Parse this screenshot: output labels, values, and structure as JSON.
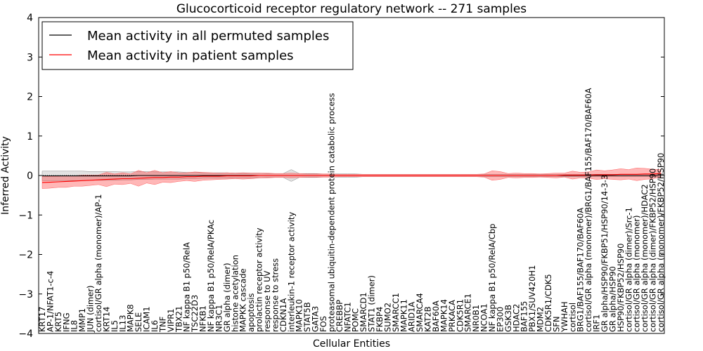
{
  "chart_data": {
    "type": "line",
    "title": "Glucocorticoid receptor regulatory network -- 271 samples",
    "xlabel": "Cellular Entities",
    "ylabel": "Inferred Activity",
    "ylim": [
      -4,
      4
    ],
    "yticks": [
      -4,
      -3,
      -2,
      -1,
      0,
      1,
      2,
      3,
      4
    ],
    "ytick_labels": [
      "−4",
      "−3",
      "−2",
      "−1",
      "0",
      "1",
      "2",
      "3",
      "4"
    ],
    "legend": {
      "position": "top-left",
      "entries": [
        {
          "label": "Mean activity in all permuted samples",
          "color": "#000000"
        },
        {
          "label": "Mean activity in patient samples",
          "color": "#ff0000"
        }
      ]
    },
    "categories": [
      "KRT17",
      "AP-1/NFAT1-c-4",
      "KRT5",
      "IFNG",
      "IL8",
      "MMP1",
      "JUN (dimer)",
      "cortisol/GR alpha (monomer)/AP-1",
      "KRT14",
      "IL5",
      "IL13",
      "MAPK8",
      "SELE",
      "ICAM1",
      "IL6",
      "TNF",
      "VIPR1",
      "TBX21",
      "NF kappa B1 p50/RelA",
      "TSC22D3",
      "NFKB1",
      "NF kappa B1 p50/RelA/PKAc",
      "NR3C1",
      "GR alpha (dimer)",
      "histone acetylation",
      "MAPKK cascade",
      "apoptosis",
      "prolactin receptor activity",
      "response to UV",
      "response to stress",
      "CDKN1A",
      "interleukin-1 receptor activity",
      "MAPK10",
      "STAT5B",
      "GATA3",
      "FOS",
      "proteasomal ubiquitin-dependent protein catabolic process",
      "CREBBP",
      "NFATC1",
      "POMC",
      "SMARCD1",
      "STAT1 (dimer)",
      "FKBP4",
      "SUMO2",
      "SMARCC1",
      "MAPK11",
      "ARID1A",
      "SMARCA4",
      "KAT2B",
      "BAF60A",
      "MAPK14",
      "PRKACA",
      "CDK5R1",
      "SMARCE1",
      "NR0B1",
      "NCOA1",
      "NF kappa B1 p50/RelA/Cbp",
      "EP300",
      "GSK3B",
      "HDAC2",
      "BAF155",
      "PBX1/SUV420H1",
      "MDM2",
      "CDK5R1/CDK5",
      "SFN",
      "YWHAH",
      "cortisol",
      "BRG1/BAF155/BAF170/BAF60A",
      "cortisol/GR alpha (monomer)/BRG1/BAF155/BAF170/BAF60A",
      "IRF1",
      "GR alpha/HSP90/FKBP51/HSP90/14-3-3",
      "GR alpha/HSP90",
      "HSP90/FKBP52/HSP90",
      "cortisol/GR alpha (dimer)/Src-1",
      "cortisol/GR alpha (monomer)",
      "cortisol/GR alpha (monomer)/HDAC2",
      "cortisol/GR alpha (dimer)/FKBP52/HSP90",
      "cortisol/GR alpha (monomer)/FKBP52/HSP90"
    ],
    "series": [
      {
        "name": "Mean activity in all permuted samples",
        "color": "#000000",
        "values": [
          -0.01,
          -0.01,
          -0.01,
          -0.01,
          -0.01,
          -0.01,
          -0.01,
          -0.01,
          -0.01,
          -0.01,
          -0.01,
          -0.01,
          0,
          0,
          0,
          0,
          0,
          0,
          0,
          0,
          0,
          0,
          0,
          0,
          0,
          0,
          0,
          0,
          0,
          0,
          0,
          0,
          0,
          0,
          0,
          0,
          0,
          0,
          0,
          0,
          0,
          0,
          0,
          0,
          0,
          0,
          0,
          0,
          0,
          0,
          0,
          0,
          0,
          0,
          0,
          0,
          0,
          0,
          0,
          0,
          0,
          0,
          0,
          0,
          0,
          0,
          0,
          0,
          0,
          0,
          0,
          0,
          0,
          0,
          0,
          0,
          0,
          0
        ],
        "band_half_width": [
          0.12,
          0.12,
          0.12,
          0.12,
          0.12,
          0.12,
          0.11,
          0.11,
          0.11,
          0.11,
          0.1,
          0.1,
          0.1,
          0.1,
          0.09,
          0.09,
          0.09,
          0.09,
          0.08,
          0.08,
          0.07,
          0.07,
          0.07,
          0.07,
          0.06,
          0.06,
          0.06,
          0.06,
          0.05,
          0.05,
          0.05,
          0.15,
          0.05,
          0.05,
          0.05,
          0.04,
          0.04,
          0.04,
          0.04,
          0.04,
          0.03,
          0.03,
          0.03,
          0.03,
          0.03,
          0.03,
          0.03,
          0.03,
          0.03,
          0.03,
          0.03,
          0.03,
          0.03,
          0.03,
          0.03,
          0.03,
          0.03,
          0.03,
          0.03,
          0.03,
          0.03,
          0.03,
          0.03,
          0.03,
          0.03,
          0.03,
          0.03,
          0.03,
          0.03,
          0.03,
          0.03,
          0.03,
          0.03,
          0.03,
          0.03,
          0.03,
          0.03,
          0.03
        ]
      },
      {
        "name": "Mean activity in patient samples",
        "color": "#ff0000",
        "values": [
          -0.18,
          -0.17,
          -0.16,
          -0.15,
          -0.14,
          -0.13,
          -0.12,
          -0.11,
          -0.1,
          -0.09,
          -0.08,
          -0.08,
          -0.07,
          -0.06,
          -0.05,
          -0.05,
          -0.04,
          -0.04,
          -0.03,
          -0.03,
          -0.02,
          -0.02,
          -0.02,
          -0.01,
          -0.01,
          -0.01,
          -0.01,
          0,
          0,
          0,
          0,
          0,
          0,
          0,
          0,
          0,
          0,
          0,
          0,
          0,
          0,
          0,
          0,
          0,
          0,
          0,
          0,
          0,
          0,
          0,
          0,
          0,
          0,
          0,
          0,
          0,
          0,
          0,
          0,
          0,
          0,
          0,
          0,
          0,
          0,
          0.01,
          0.01,
          0.01,
          0.01,
          0.02,
          0.02,
          0.02,
          0.03,
          0.03,
          0.03,
          0.04,
          0.04,
          0.05
        ],
        "band_half_width": [
          0.15,
          0.15,
          0.14,
          0.15,
          0.13,
          0.14,
          0.13,
          0.12,
          0.18,
          0.13,
          0.15,
          0.12,
          0.2,
          0.13,
          0.18,
          0.12,
          0.14,
          0.11,
          0.1,
          0.12,
          0.1,
          0.09,
          0.08,
          0.08,
          0.07,
          0.08,
          0.07,
          0.06,
          0.06,
          0.05,
          0.05,
          0.06,
          0.05,
          0.04,
          0.04,
          0.04,
          0.04,
          0.03,
          0.03,
          0.03,
          0.03,
          0.03,
          0.03,
          0.03,
          0.03,
          0.03,
          0.03,
          0.03,
          0.03,
          0.03,
          0.03,
          0.03,
          0.03,
          0.03,
          0.03,
          0.04,
          0.12,
          0.1,
          0.05,
          0.06,
          0.05,
          0.05,
          0.04,
          0.05,
          0.06,
          0.05,
          0.1,
          0.07,
          0.08,
          0.12,
          0.1,
          0.12,
          0.14,
          0.12,
          0.16,
          0.14,
          0.12,
          0.1
        ]
      }
    ]
  }
}
